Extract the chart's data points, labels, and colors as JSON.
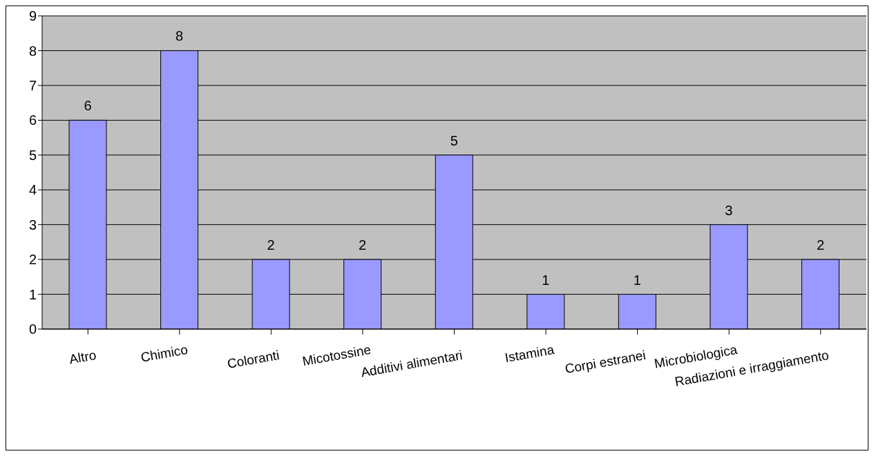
{
  "chart_data": {
    "type": "bar",
    "categories": [
      "Altro",
      "Chimico",
      "Coloranti",
      "Micotossine",
      "Additivi alimentari",
      "Istamina",
      "Corpi estranei",
      "Microbiologica",
      "Radiazioni e irraggiamento"
    ],
    "values": [
      6,
      8,
      2,
      2,
      5,
      1,
      1,
      3,
      2
    ],
    "color": "#9999ff",
    "ylim": [
      0,
      9
    ],
    "yticks": [
      0,
      1,
      2,
      3,
      4,
      5,
      6,
      7,
      8,
      9
    ],
    "grid": "y",
    "data_labels": true
  }
}
